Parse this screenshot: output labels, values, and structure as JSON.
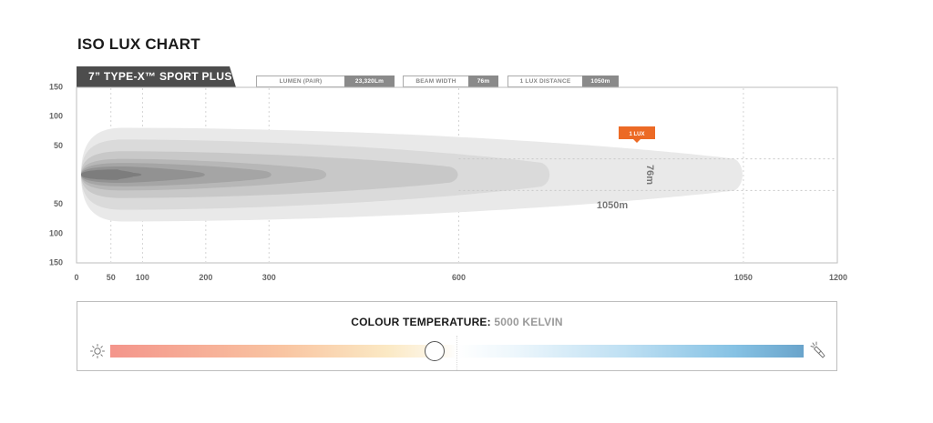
{
  "title": "ISO LUX CHART",
  "model": "7” TYPE-X™ SPORT PLUS",
  "specs": [
    {
      "label": "LUMEN (PAIR)",
      "value": "23,320Lm"
    },
    {
      "label": "BEAM WIDTH",
      "value": "76m"
    },
    {
      "label": "1 LUX DISTANCE",
      "value": "1050m"
    }
  ],
  "chart_data": {
    "type": "area",
    "x_ticks": [
      "0",
      "50",
      "100",
      "200",
      "300",
      "600",
      "1050",
      "1200"
    ],
    "y_ticks_top": [
      "150",
      "100",
      "50"
    ],
    "y_ticks_bottom": [
      "50",
      "100",
      "150"
    ],
    "xlim": [
      0,
      1200
    ],
    "ylim": [
      -150,
      150
    ],
    "grid": "dashed vertical at x ticks",
    "contours": [
      {
        "reach": 1050,
        "half_width": 80
      },
      {
        "reach": 745,
        "half_width": 60
      },
      {
        "reach": 600,
        "half_width": 40
      },
      {
        "reach": 392,
        "half_width": 27
      },
      {
        "reach": 305,
        "half_width": 20
      },
      {
        "reach": 200,
        "half_width": 14
      },
      {
        "reach": 100,
        "half_width": 9
      }
    ],
    "colors": [
      "#e9e9e9",
      "#dadada",
      "#c8c8c8",
      "#b7b7b7",
      "#a5a5a5",
      "#929292",
      "#7d7d7d"
    ],
    "annotations": {
      "lux_label": "1 LUX",
      "lux_label_color": "#ec6a25",
      "distance_label": "1050m",
      "width_label": "76m",
      "width_guides": [
        27,
        -27
      ]
    }
  },
  "colour_temperature": {
    "label": "COLOUR TEMPERATURE:",
    "value": "5000 KELVIN",
    "position": 0.45
  },
  "icons": [
    "sun-icon",
    "torch-icon"
  ]
}
